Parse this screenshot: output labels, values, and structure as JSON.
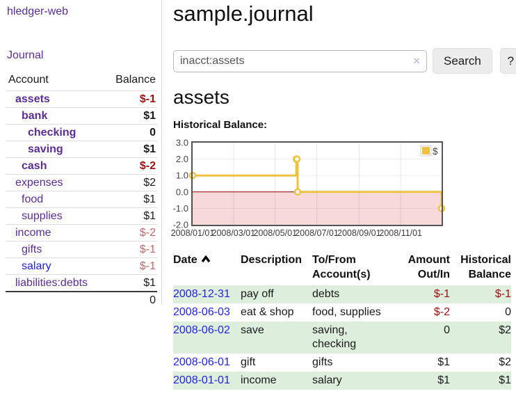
{
  "app": {
    "brand": "hledger-web",
    "nav_journal": "Journal"
  },
  "colors": {
    "purple": "#5b2d90",
    "blue": "#2222dd",
    "darkred": "#a01010",
    "palered": "#c06a6a",
    "row-green": "#ddeedd",
    "line-yellow": "#edc240",
    "grid-border": "#545454"
  },
  "sidebar": {
    "headers": {
      "account": "Account",
      "balance": "Balance"
    },
    "accounts": [
      {
        "name": "assets",
        "depth": 1,
        "bold": true,
        "link_color": "purple",
        "balance": "$-1",
        "balance_color": "darkred"
      },
      {
        "name": "bank",
        "depth": 2,
        "bold": true,
        "link_color": "purple",
        "balance": "$1",
        "balance_color": "black"
      },
      {
        "name": "checking",
        "depth": 3,
        "bold": true,
        "link_color": "purple",
        "balance": "0",
        "balance_color": "black"
      },
      {
        "name": "saving",
        "depth": 3,
        "bold": true,
        "link_color": "purple",
        "balance": "$1",
        "balance_color": "black"
      },
      {
        "name": "cash",
        "depth": 2,
        "bold": true,
        "link_color": "purple",
        "balance": "$-2",
        "balance_color": "darkred"
      },
      {
        "name": "expenses",
        "depth": 1,
        "bold": false,
        "link_color": "purple",
        "balance": "$2",
        "balance_color": "black"
      },
      {
        "name": "food",
        "depth": 2,
        "bold": false,
        "link_color": "purple",
        "balance": "$1",
        "balance_color": "black"
      },
      {
        "name": "supplies",
        "depth": 2,
        "bold": false,
        "link_color": "purple",
        "balance": "$1",
        "balance_color": "black"
      },
      {
        "name": "income",
        "depth": 1,
        "bold": false,
        "link_color": "purple",
        "balance": "$-2",
        "balance_color": "palered"
      },
      {
        "name": "gifts",
        "depth": 2,
        "bold": false,
        "link_color": "purple",
        "balance": "$-1",
        "balance_color": "palered"
      },
      {
        "name": "salary",
        "depth": 2,
        "bold": false,
        "link_color": "blue",
        "balance": "$-1",
        "balance_color": "palered"
      },
      {
        "name": "liabilities:debts",
        "depth": 1,
        "bold": false,
        "link_color": "purple",
        "balance": "$1",
        "balance_color": "black"
      }
    ],
    "total": "0"
  },
  "header": {
    "title": "sample.journal"
  },
  "search": {
    "value": "inacct:assets",
    "clear_icon": "×",
    "button_label": "Search",
    "help_label": "?"
  },
  "account_page": {
    "heading": "assets",
    "chart_title": "Historical Balance:"
  },
  "chart_data": {
    "type": "line",
    "step": true,
    "title": "Historical Balance:",
    "legend": "$",
    "legend_position": "top-right",
    "grid": true,
    "series": [
      {
        "name": "$",
        "color": "#edc240",
        "points": [
          [
            "2008-01-01",
            1
          ],
          [
            "2008-06-01",
            2
          ],
          [
            "2008-06-02",
            2
          ],
          [
            "2008-06-03",
            0
          ],
          [
            "2008-12-31",
            -1
          ]
        ]
      }
    ],
    "x_range": [
      "2008-01-01",
      "2008-12-31"
    ],
    "ylim": [
      -2,
      3
    ],
    "y_ticks": [
      {
        "label": "3.0",
        "value": 3
      },
      {
        "label": "2.0",
        "value": 2
      },
      {
        "label": "1.0",
        "value": 1
      },
      {
        "label": "0.0",
        "value": 0
      },
      {
        "label": "-1.0",
        "value": -1
      },
      {
        "label": "-2.0",
        "value": -2
      }
    ],
    "x_ticks": [
      {
        "label": "2008/01/01",
        "date": "2008-01-01"
      },
      {
        "label": "2008/03/01",
        "date": "2008-03-01"
      },
      {
        "label": "2008/05/01",
        "date": "2008-05-01"
      },
      {
        "label": "2008/07/01",
        "date": "2008-07-01"
      },
      {
        "label": "2008/09/01",
        "date": "2008-09-01"
      },
      {
        "label": "2008/11/01",
        "date": "2008-11-01"
      }
    ],
    "negative_region_color": "#f8d9d9",
    "zero_line_color": "#8b0000",
    "border_color": "#545454"
  },
  "register": {
    "headers": {
      "date": "Date",
      "description": "Description",
      "accounts": "To/From Account(s)",
      "amount": "Amount Out/In",
      "balance": "Historical Balance"
    },
    "rows": [
      {
        "date": "2008-12-31",
        "description": "pay off",
        "accounts": "debts",
        "amount": "$-1",
        "amount_negative": true,
        "balance": "$-1",
        "balance_negative": true
      },
      {
        "date": "2008-06-03",
        "description": "eat & shop",
        "accounts": "food, supplies",
        "amount": "$-2",
        "amount_negative": true,
        "balance": "0",
        "balance_negative": false
      },
      {
        "date": "2008-06-02",
        "description": "save",
        "accounts": "saving, checking",
        "amount": "0",
        "amount_negative": false,
        "balance": "$2",
        "balance_negative": false
      },
      {
        "date": "2008-06-01",
        "description": "gift",
        "accounts": "gifts",
        "amount": "$1",
        "amount_negative": false,
        "balance": "$2",
        "balance_negative": false
      },
      {
        "date": "2008-01-01",
        "description": "income",
        "accounts": "salary",
        "amount": "$1",
        "amount_negative": false,
        "balance": "$1",
        "balance_negative": false
      }
    ]
  }
}
